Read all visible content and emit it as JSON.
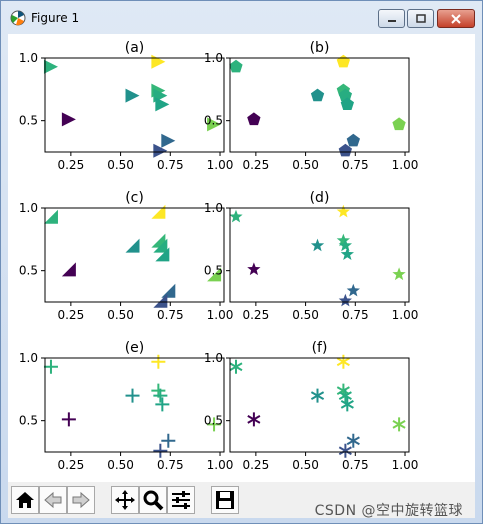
{
  "window": {
    "title": "Figure 1"
  },
  "toolbar": {
    "buttons": [
      {
        "name": "home-icon"
      },
      {
        "name": "back-icon"
      },
      {
        "name": "forward-icon"
      },
      {
        "name": "pan-icon"
      },
      {
        "name": "zoom-icon"
      },
      {
        "name": "configure-subplots-icon"
      },
      {
        "name": "save-icon"
      }
    ]
  },
  "watermark": "CSDN @空中旋转篮球",
  "chart_data": [
    {
      "type": "scatter",
      "title": "(a)",
      "marker": ">",
      "xticks": [
        "0.25",
        "0.50",
        "0.75",
        "1.00"
      ],
      "yticks": [
        "0.5",
        "1.0"
      ],
      "xlim": [
        0.12,
        1.02
      ],
      "ylim": [
        0.25,
        1.0
      ]
    },
    {
      "type": "scatter",
      "title": "(b)",
      "marker": "pentagon",
      "xticks": [
        "0.25",
        "0.50",
        "0.75",
        "1.00"
      ],
      "yticks": [
        "0.5",
        "1.0"
      ],
      "xlim": [
        0.12,
        1.02
      ],
      "ylim": [
        0.25,
        1.0
      ]
    },
    {
      "type": "scatter",
      "title": "(c)",
      "marker": "triangle-corner",
      "xticks": [
        "0.25",
        "0.50",
        "0.75",
        "1.00"
      ],
      "yticks": [
        "0.5",
        "1.0"
      ],
      "xlim": [
        0.12,
        1.02
      ],
      "ylim": [
        0.25,
        1.0
      ]
    },
    {
      "type": "scatter",
      "title": "(d)",
      "marker": "star",
      "xticks": [
        "0.25",
        "0.50",
        "0.75",
        "1.00"
      ],
      "yticks": [
        "0.5",
        "1.0"
      ],
      "xlim": [
        0.12,
        1.02
      ],
      "ylim": [
        0.25,
        1.0
      ]
    },
    {
      "type": "scatter",
      "title": "(e)",
      "marker": "plus",
      "xticks": [
        "0.25",
        "0.50",
        "0.75",
        "1.00"
      ],
      "yticks": [
        "0.5",
        "1.0"
      ],
      "xlim": [
        0.12,
        1.02
      ],
      "ylim": [
        0.25,
        1.0
      ]
    },
    {
      "type": "scatter",
      "title": "(f)",
      "marker": "plus-star",
      "xticks": [
        "0.25",
        "0.50",
        "0.75",
        "1.00"
      ],
      "yticks": [
        "0.5",
        "1.0"
      ],
      "xlim": [
        0.12,
        1.02
      ],
      "ylim": [
        0.25,
        1.0
      ]
    }
  ],
  "points": [
    {
      "x": 0.15,
      "y": 0.93,
      "color": "#2db27d"
    },
    {
      "x": 0.24,
      "y": 0.51,
      "color": "#440154"
    },
    {
      "x": 0.56,
      "y": 0.7,
      "color": "#21918c"
    },
    {
      "x": 0.69,
      "y": 0.97,
      "color": "#fde725"
    },
    {
      "x": 0.69,
      "y": 0.74,
      "color": "#35b779"
    },
    {
      "x": 0.7,
      "y": 0.7,
      "color": "#27ad81"
    },
    {
      "x": 0.71,
      "y": 0.63,
      "color": "#20a486"
    },
    {
      "x": 0.74,
      "y": 0.34,
      "color": "#31688e"
    },
    {
      "x": 0.7,
      "y": 0.26,
      "color": "#3b528b"
    },
    {
      "x": 0.97,
      "y": 0.47,
      "color": "#7ad151"
    }
  ]
}
